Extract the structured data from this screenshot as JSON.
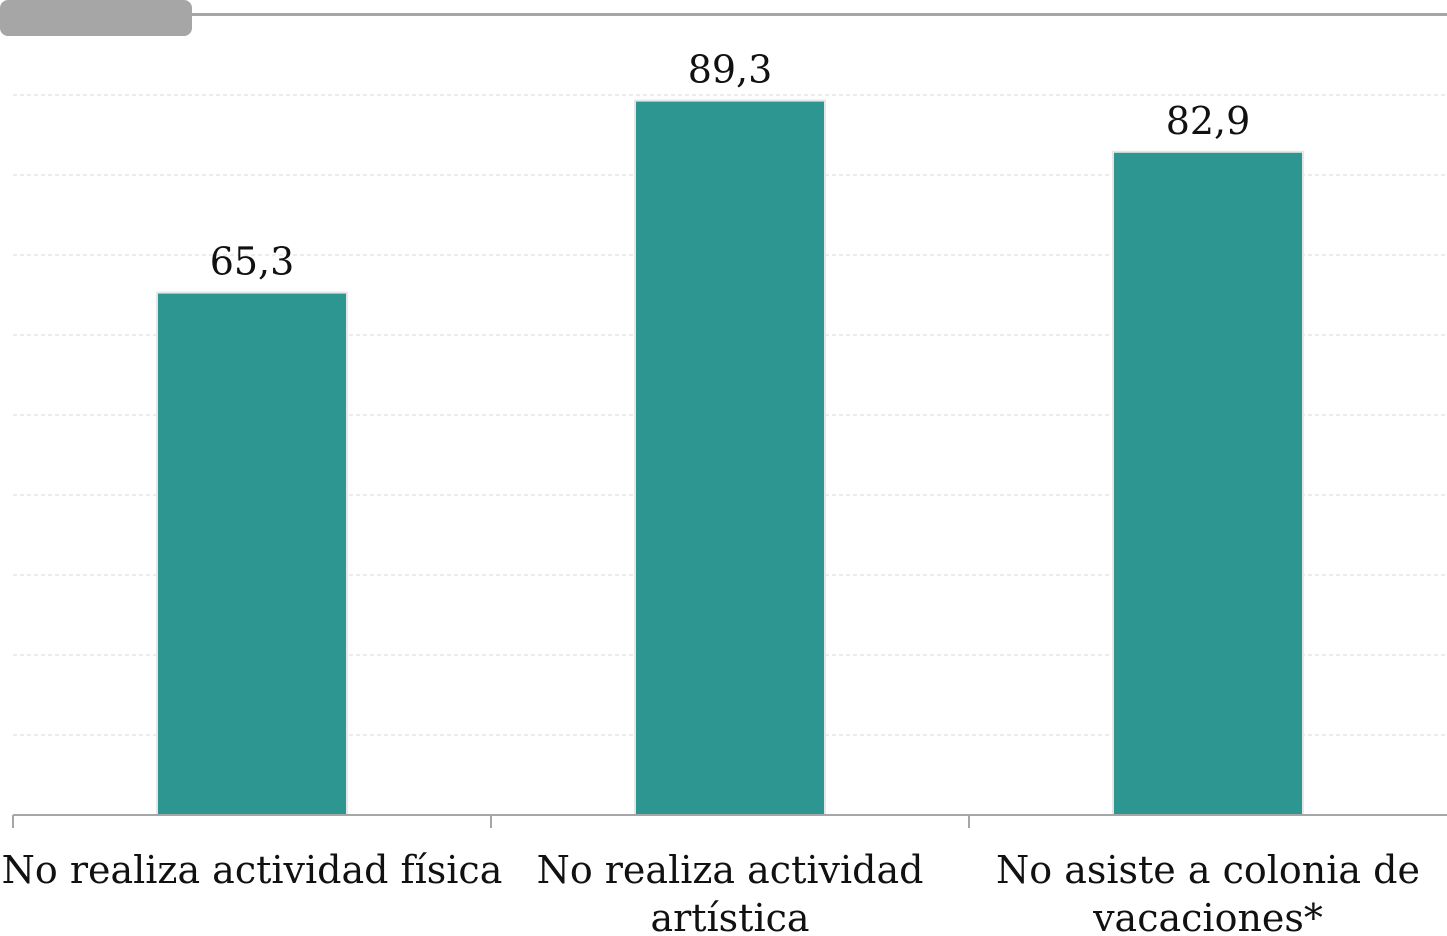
{
  "chart_data": {
    "type": "bar",
    "categories": [
      [
        "No realiza actividad física"
      ],
      [
        "No realiza actividad",
        "artística"
      ],
      [
        "No asiste a colonia de",
        "vacaciones*"
      ]
    ],
    "values": [
      65.3,
      89.3,
      82.9
    ],
    "data_labels": [
      "65,3",
      "89,3",
      "82,9"
    ],
    "ylim": [
      0,
      90
    ],
    "grid": true,
    "bar_color": "#2e9690",
    "title": "",
    "xlabel": "",
    "ylabel": ""
  },
  "colors": {
    "header_tab": "#a6a6a6",
    "header_line": "#a6a6a6",
    "gridline": "#d9d9d9",
    "axis": "#a6a6a6"
  }
}
